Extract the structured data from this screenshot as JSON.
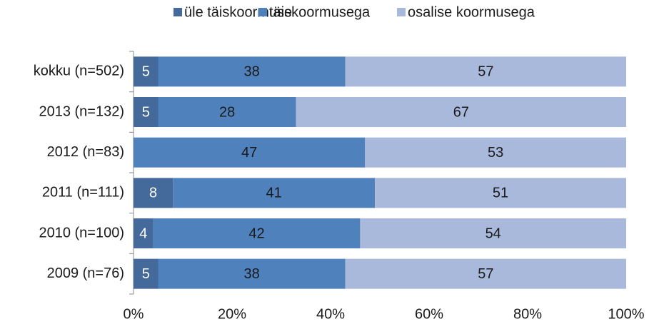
{
  "chart_data": {
    "type": "stacked-barh",
    "categories": [
      "kokku (n=502)",
      "2013 (n=132)",
      "2012 (n=83)",
      "2011 (n=111)",
      "2010 (n=100)",
      "2009 (n=76)"
    ],
    "series": [
      {
        "name": "üle täiskoormuse",
        "color": "#44699b",
        "values": [
          5,
          5,
          null,
          8,
          4,
          5
        ]
      },
      {
        "name": "täiskoormusega",
        "color": "#4f81bd",
        "values": [
          38,
          28,
          47,
          41,
          42,
          38
        ]
      },
      {
        "name": "osalise koormusega",
        "color": "#a8b9dc",
        "values": [
          57,
          67,
          53,
          51,
          54,
          57
        ]
      }
    ],
    "xlim": [
      0,
      100
    ],
    "xticks": [
      {
        "value": 0,
        "label": "0%"
      },
      {
        "value": 20,
        "label": "20%"
      },
      {
        "value": 40,
        "label": "40%"
      },
      {
        "value": 60,
        "label": "60%"
      },
      {
        "value": 80,
        "label": "80%"
      },
      {
        "value": 100,
        "label": "100%"
      }
    ],
    "label_colors": [
      "#ffffff",
      "#1a1a1a",
      "#1a1a1a"
    ],
    "legend": "top"
  }
}
